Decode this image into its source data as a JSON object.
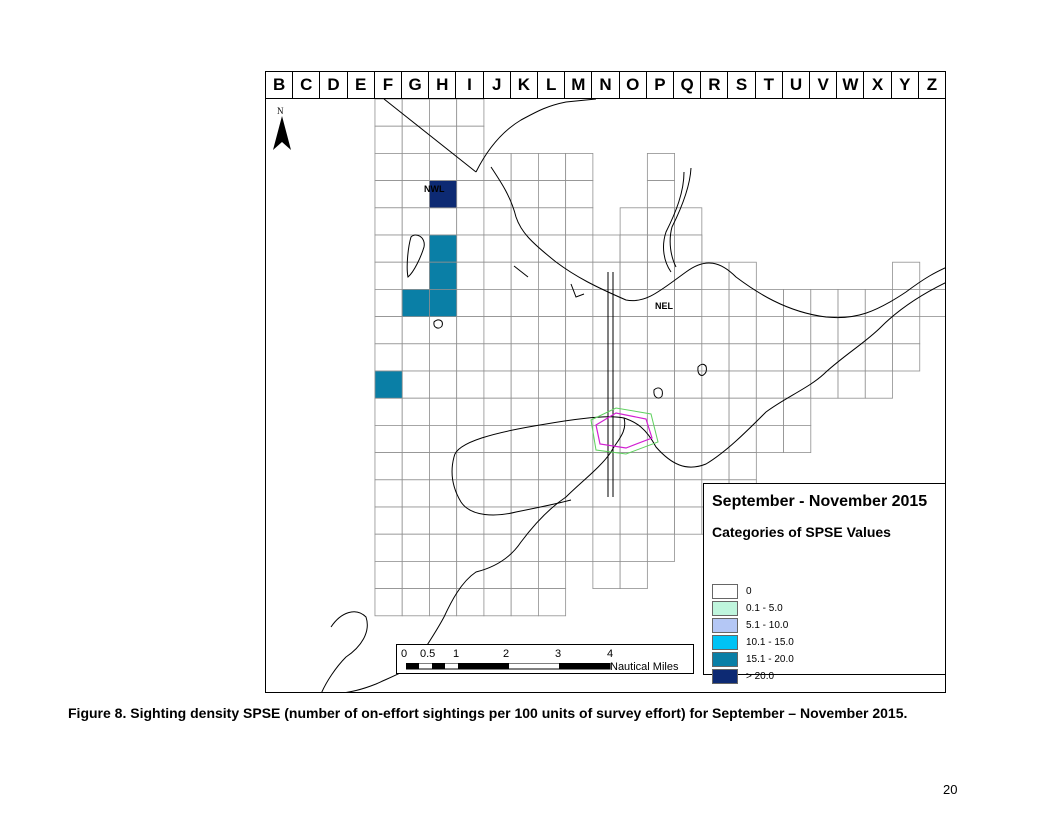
{
  "map": {
    "columns": [
      "B",
      "C",
      "D",
      "E",
      "F",
      "G",
      "H",
      "I",
      "J",
      "K",
      "L",
      "M",
      "N",
      "O",
      "P",
      "Q",
      "R",
      "S",
      "T",
      "U",
      "V",
      "W",
      "X",
      "Y",
      "Z"
    ],
    "north_label": "N",
    "area_labels": {
      "nwl": "NWL",
      "nel": "NEL"
    },
    "colors": {
      "cat0": "#ffffff",
      "cat1": "#bff5dd",
      "cat2": "#b4c7f5",
      "cat3": "#00c3f5",
      "cat4": "#0a7fa6",
      "cat5": "#0d2a73",
      "coastline": "#000000",
      "grid": "#909090",
      "zone_outer": "#5fd15f",
      "zone_inner": "#d21fd2"
    },
    "filled_cells": [
      {
        "col": "H",
        "row": 4,
        "category": "> 20.0"
      },
      {
        "col": "H",
        "row": 6,
        "category": "15.1 - 20.0"
      },
      {
        "col": "H",
        "row": 7,
        "category": "15.1 - 20.0"
      },
      {
        "col": "G",
        "row": 8,
        "category": "15.1 - 20.0"
      },
      {
        "col": "H",
        "row": 8,
        "category": "15.1 - 20.0"
      },
      {
        "col": "F",
        "row": 11,
        "category": "15.1 - 20.0"
      }
    ]
  },
  "scale": {
    "labels": [
      "0",
      "0.5",
      "1",
      "2",
      "3",
      "4"
    ],
    "units": "Nautical Miles"
  },
  "legend": {
    "title": "September - November 2015",
    "subtitle": "Categories of SPSE Values",
    "items": [
      {
        "label": "0",
        "color": "#ffffff"
      },
      {
        "label": "0.1 - 5.0",
        "color": "#bff5dd"
      },
      {
        "label": "5.1 - 10.0",
        "color": "#b4c7f5"
      },
      {
        "label": "10.1 - 15.0",
        "color": "#00c3f5"
      },
      {
        "label": "15.1 - 20.0",
        "color": "#0a7fa6"
      },
      {
        "label": "> 20.0",
        "color": "#0d2a73"
      }
    ]
  },
  "caption": "Figure 8. Sighting density SPSE (number of on-effort sightings per 100 units of survey effort) for September – November 2015.",
  "page_number": "20"
}
